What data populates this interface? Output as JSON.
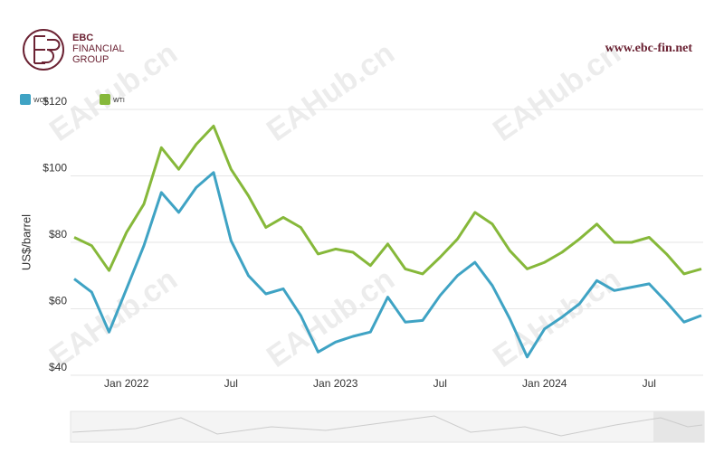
{
  "brand": {
    "name": "EBC",
    "line1": "FINANCIAL",
    "line2": "GROUP",
    "url": "www.ebc-fin.net"
  },
  "watermark": "EAHub.cn",
  "chart_data": {
    "type": "line",
    "y_label": "US$/barrel",
    "categories": [
      null,
      null,
      null,
      "Jan 2022",
      null,
      null,
      null,
      null,
      null,
      "Jul",
      null,
      null,
      null,
      null,
      null,
      "Jan 2023",
      null,
      null,
      null,
      null,
      null,
      "Jul",
      null,
      null,
      null,
      null,
      null,
      "Jan 2024",
      null,
      null,
      null,
      null,
      null,
      "Jul",
      null,
      null,
      null
    ],
    "series": [
      {
        "name": "WCS",
        "color": "#3fa3c4",
        "values": [
          69,
          65,
          53,
          66,
          79,
          95,
          89,
          96.5,
          101,
          80.5,
          70,
          64.5,
          66,
          58,
          47,
          50,
          51.7,
          53,
          63.5,
          56,
          56.5,
          64,
          70,
          74,
          67,
          57,
          45.5,
          54,
          57.5,
          61.5,
          68.5,
          65.5,
          66.5,
          67.5,
          62,
          56,
          58
        ]
      },
      {
        "name": "WTI",
        "color": "#86b83a",
        "values": [
          81.5,
          79,
          71.5,
          83,
          91.5,
          108.5,
          102,
          109.5,
          115,
          102,
          94,
          84.5,
          87.5,
          84.5,
          76.5,
          78,
          77,
          73,
          79.5,
          72,
          70.5,
          75.5,
          81,
          89,
          85.5,
          77.5,
          72,
          74,
          77,
          81,
          85.5,
          80,
          80,
          81.5,
          76.5,
          70.5,
          72
        ]
      }
    ],
    "ylim": [
      40,
      120
    ],
    "yticks": [
      {
        "value": 40,
        "label": "$40"
      },
      {
        "value": 60,
        "label": "$60"
      },
      {
        "value": 80,
        "label": "$80"
      },
      {
        "value": 100,
        "label": "$100"
      },
      {
        "value": 120,
        "label": "$120"
      }
    ],
    "grid": true,
    "legend": "top-left"
  }
}
